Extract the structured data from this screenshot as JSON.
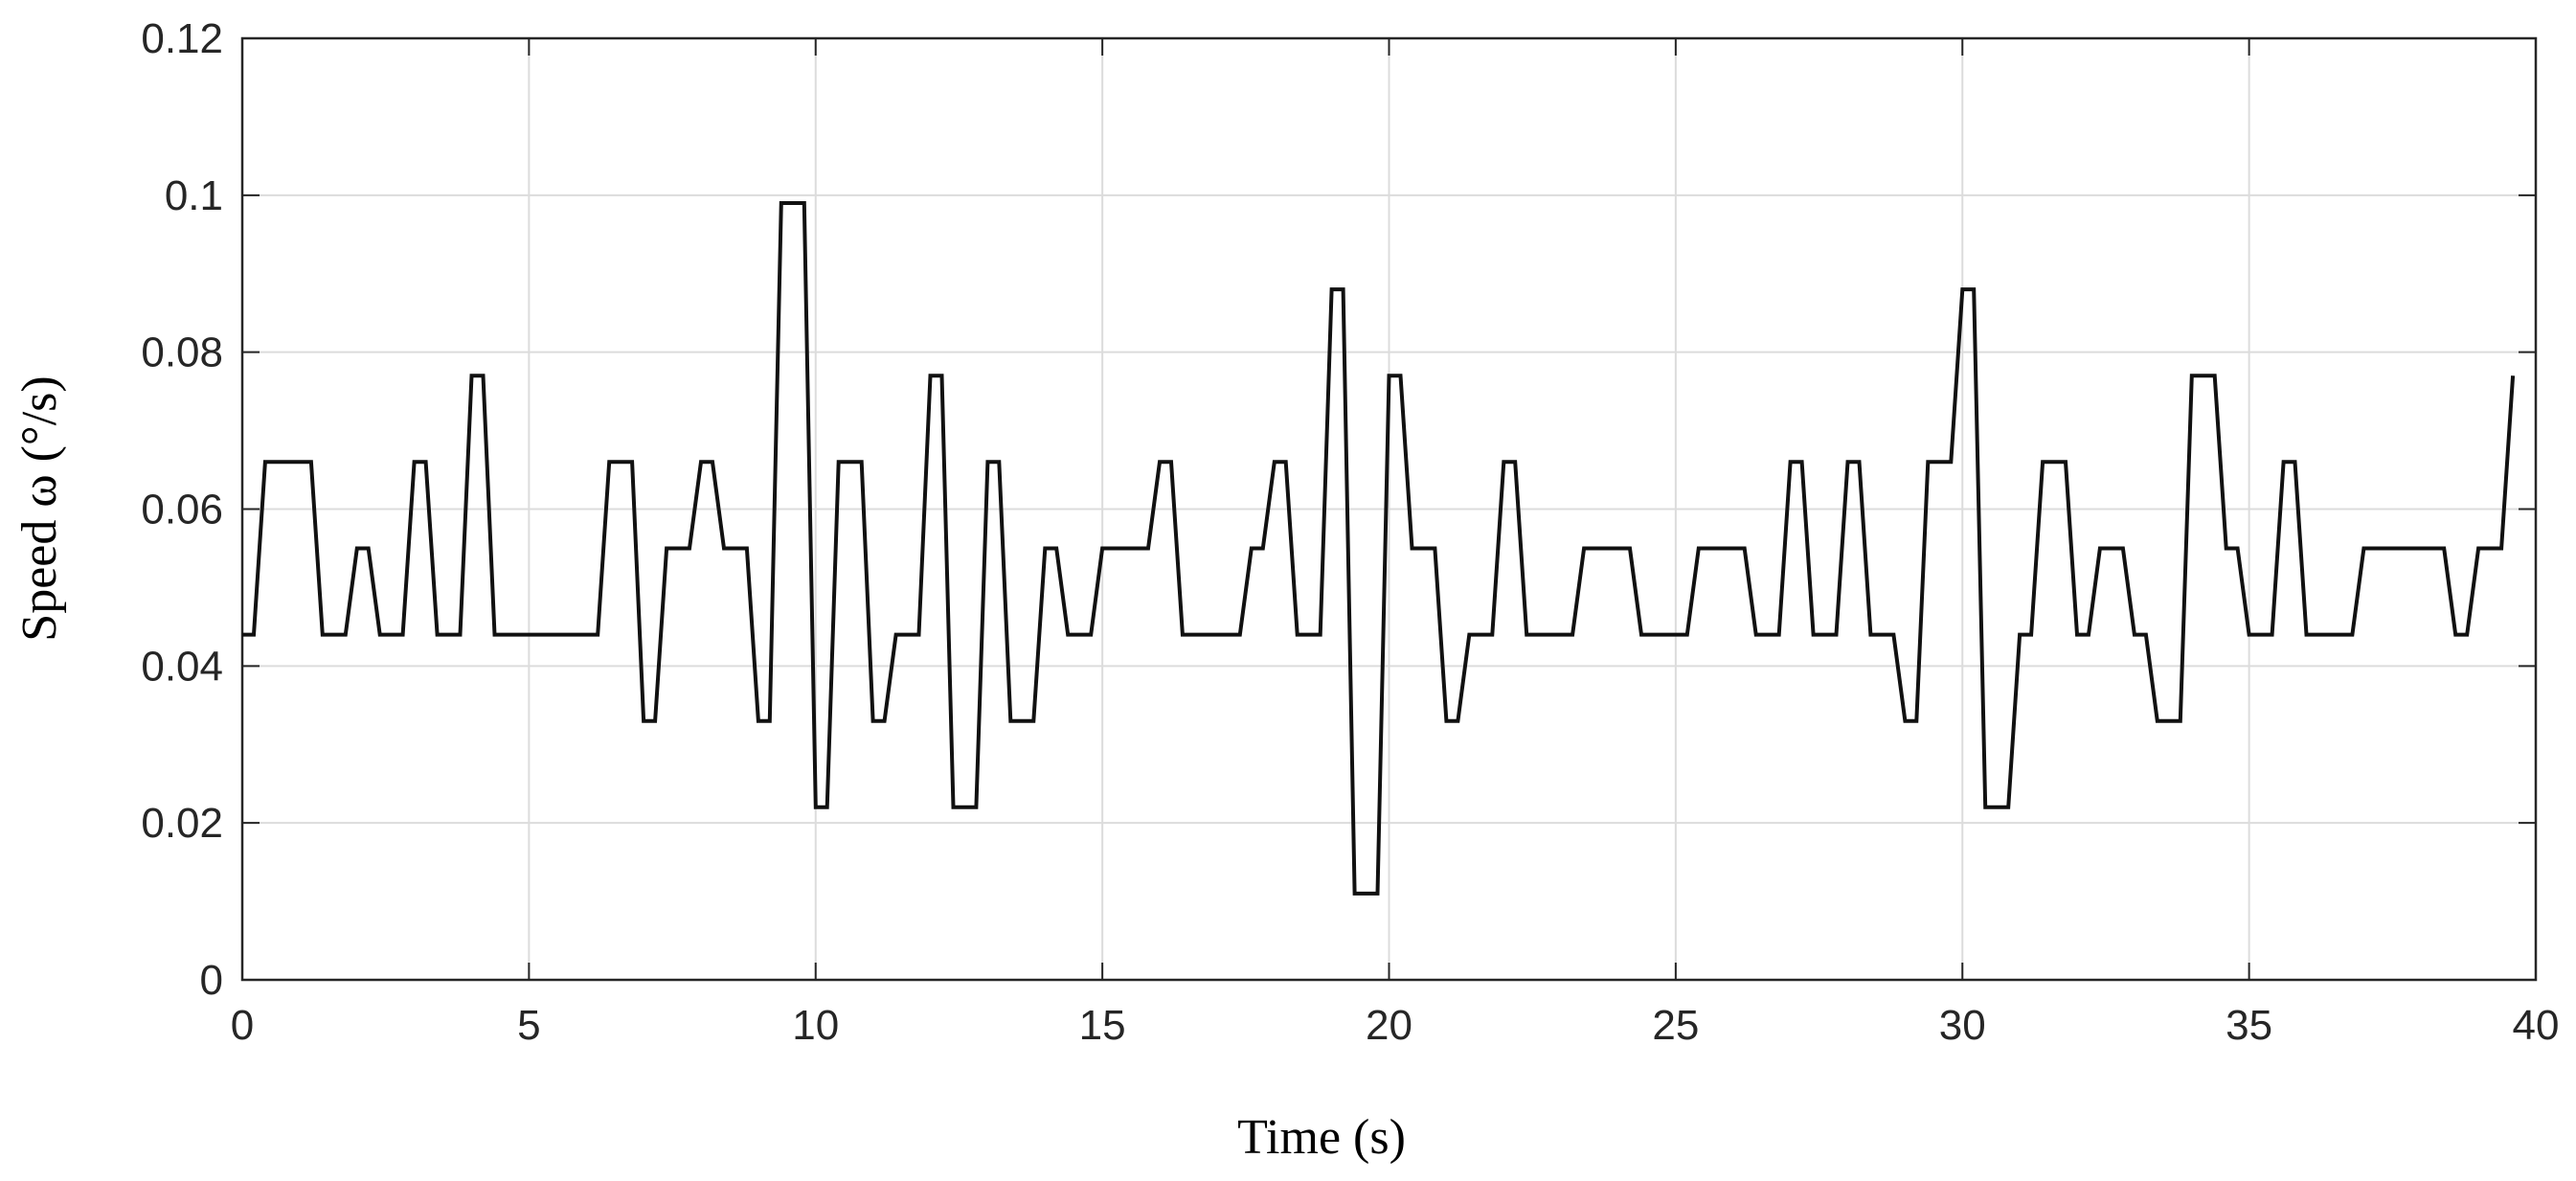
{
  "chart_data": {
    "type": "line",
    "title": "",
    "xlabel": "Time (s)",
    "ylabel": "Speed ω (°/s)",
    "xlim": [
      0,
      40
    ],
    "ylim": [
      0,
      0.12
    ],
    "xticks": [
      0,
      5,
      10,
      15,
      20,
      25,
      30,
      35,
      40
    ],
    "yticks": [
      0,
      0.02,
      0.04,
      0.06,
      0.08,
      0.1,
      0.12
    ],
    "xtick_labels": [
      "0",
      "5",
      "10",
      "15",
      "20",
      "25",
      "30",
      "35",
      "40"
    ],
    "ytick_labels": [
      "0",
      "0.02",
      "0.04",
      "0.06",
      "0.08",
      "0.1",
      "0.12"
    ],
    "grid": true,
    "legend": "none",
    "series": [
      {
        "color": "#111111",
        "x": [
          0,
          0.2,
          0.4,
          1.2,
          1.4,
          1.8,
          2.0,
          2.2,
          2.4,
          2.8,
          3.0,
          3.2,
          3.4,
          3.8,
          4.0,
          4.2,
          4.4,
          6.2,
          6.4,
          6.8,
          7.0,
          7.2,
          7.4,
          7.8,
          8.0,
          8.2,
          8.4,
          8.8,
          9.0,
          9.2,
          9.4,
          9.8,
          10.0,
          10.2,
          10.4,
          10.8,
          11.0,
          11.2,
          11.4,
          11.8,
          12.0,
          12.2,
          12.4,
          12.8,
          13.0,
          13.2,
          13.4,
          13.8,
          14.0,
          14.2,
          14.4,
          14.8,
          15.0,
          15.8,
          16.0,
          16.2,
          16.4,
          17.4,
          17.6,
          17.8,
          18.0,
          18.2,
          18.4,
          18.8,
          19.0,
          19.2,
          19.4,
          19.8,
          20.0,
          20.2,
          20.4,
          20.8,
          21.0,
          21.2,
          21.4,
          21.8,
          22.0,
          22.2,
          22.4,
          23.2,
          23.4,
          24.2,
          24.4,
          25.2,
          25.4,
          26.2,
          26.4,
          26.8,
          27.0,
          27.2,
          27.4,
          27.8,
          28.0,
          28.2,
          28.4,
          28.8,
          29.0,
          29.2,
          29.4,
          29.8,
          30.0,
          30.2,
          30.4,
          30.8,
          31.0,
          31.2,
          31.4,
          31.8,
          32.0,
          32.2,
          32.4,
          32.8,
          33.0,
          33.2,
          33.4,
          33.8,
          34.0,
          34.4,
          34.6,
          34.8,
          35.0,
          35.4,
          35.6,
          35.8,
          36.0,
          36.8,
          37.0,
          38.4,
          38.6,
          38.8,
          39.0,
          39.4,
          39.6
        ],
        "y": [
          0.044,
          0.044,
          0.066,
          0.066,
          0.044,
          0.044,
          0.055,
          0.055,
          0.044,
          0.044,
          0.066,
          0.066,
          0.044,
          0.044,
          0.077,
          0.077,
          0.044,
          0.044,
          0.066,
          0.066,
          0.033,
          0.033,
          0.055,
          0.055,
          0.066,
          0.066,
          0.055,
          0.055,
          0.033,
          0.033,
          0.099,
          0.099,
          0.022,
          0.022,
          0.066,
          0.066,
          0.033,
          0.033,
          0.044,
          0.044,
          0.077,
          0.077,
          0.022,
          0.022,
          0.066,
          0.066,
          0.033,
          0.033,
          0.055,
          0.055,
          0.044,
          0.044,
          0.055,
          0.055,
          0.066,
          0.066,
          0.044,
          0.044,
          0.055,
          0.055,
          0.066,
          0.066,
          0.044,
          0.044,
          0.088,
          0.088,
          0.011,
          0.011,
          0.077,
          0.077,
          0.055,
          0.055,
          0.033,
          0.033,
          0.044,
          0.044,
          0.066,
          0.066,
          0.044,
          0.044,
          0.055,
          0.055,
          0.044,
          0.044,
          0.055,
          0.055,
          0.044,
          0.044,
          0.066,
          0.066,
          0.044,
          0.044,
          0.066,
          0.066,
          0.044,
          0.044,
          0.033,
          0.033,
          0.066,
          0.066,
          0.088,
          0.088,
          0.022,
          0.022,
          0.044,
          0.044,
          0.066,
          0.066,
          0.044,
          0.044,
          0.055,
          0.055,
          0.044,
          0.044,
          0.033,
          0.033,
          0.077,
          0.077,
          0.055,
          0.055,
          0.044,
          0.044,
          0.066,
          0.066,
          0.044,
          0.044,
          0.055,
          0.055,
          0.044,
          0.044,
          0.055,
          0.055,
          0.077
        ]
      }
    ]
  }
}
